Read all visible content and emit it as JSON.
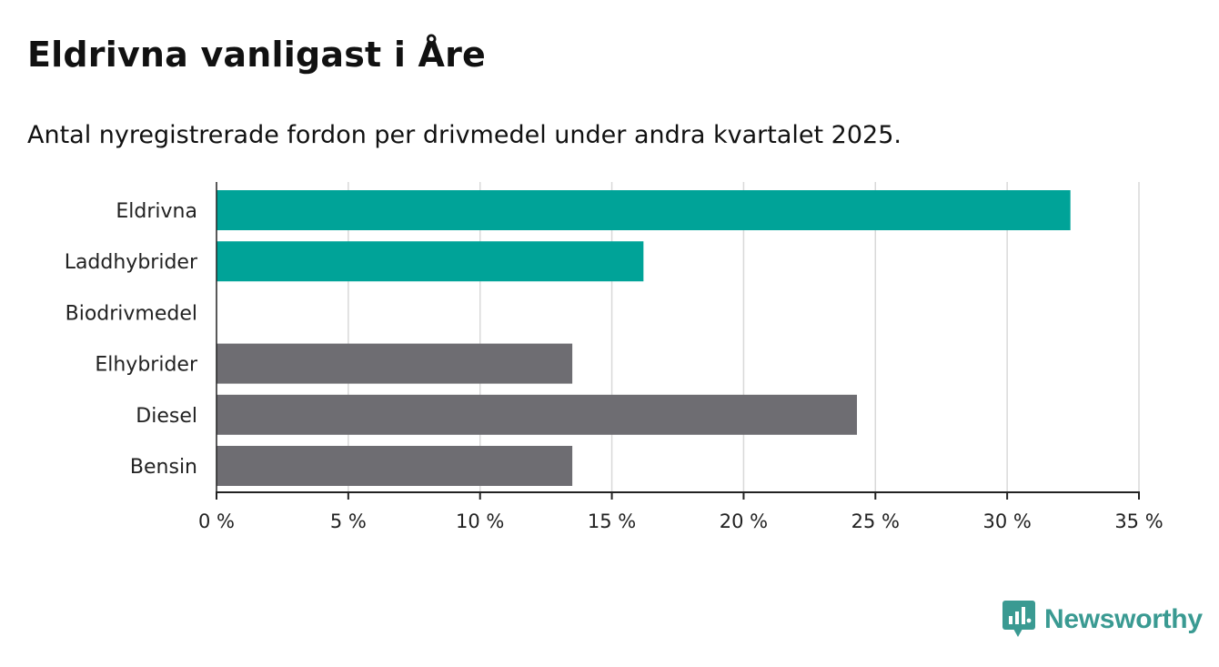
{
  "title": "Eldrivna vanligast i Åre",
  "subtitle": "Antal nyregistrerade fordon per drivmedel under andra kvartalet 2025.",
  "brand": {
    "name": "Newsworthy",
    "icon": "newsworthy-logo-icon",
    "color": "#3a9a92"
  },
  "chart_data": {
    "type": "bar",
    "orientation": "horizontal",
    "categories": [
      "Eldrivna",
      "Laddhybrider",
      "Biodrivmedel",
      "Elhybrider",
      "Diesel",
      "Bensin"
    ],
    "values": [
      32.4,
      16.2,
      0,
      13.5,
      24.3,
      13.5
    ],
    "bar_colors": [
      "#00a398",
      "#00a398",
      "#00a398",
      "#6e6d72",
      "#6e6d72",
      "#6e6d72"
    ],
    "xlim": [
      0,
      35
    ],
    "x_ticks": [
      0,
      5,
      10,
      15,
      20,
      25,
      30,
      35
    ],
    "x_tick_labels": [
      "0 %",
      "5 %",
      "10 %",
      "15 %",
      "20 %",
      "25 %",
      "30 %",
      "35 %"
    ],
    "grid": true,
    "xlabel": "",
    "ylabel": ""
  }
}
